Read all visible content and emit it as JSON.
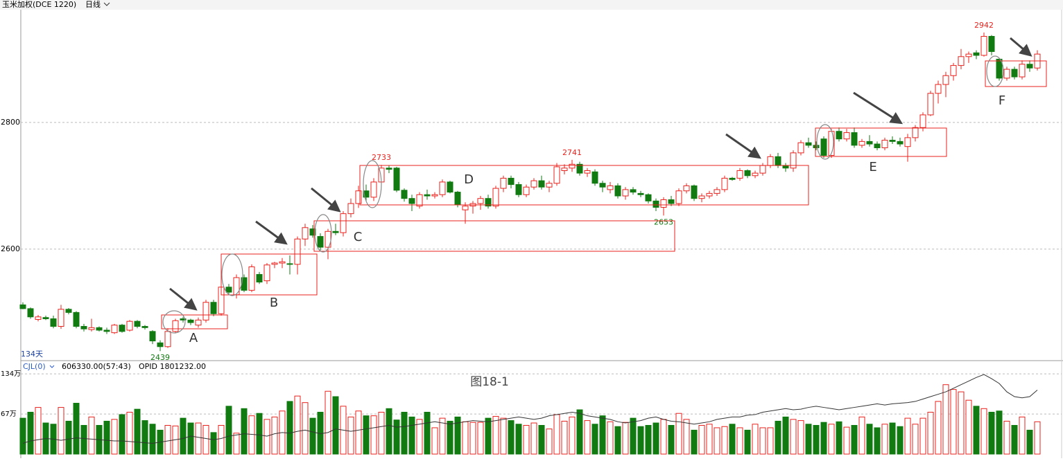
{
  "header": {
    "instrument": "玉米加权(DCE 1220)",
    "period": "日线"
  },
  "caption": "图18-1",
  "chart_data": [
    {
      "type": "candlestick",
      "ylim": [
        2425,
        2977
      ],
      "yticks": [
        2600,
        2800
      ],
      "grid": true,
      "up_color": "#e8211c",
      "down_color": "#117a11",
      "count_label": "134天",
      "extremes": [
        2439,
        2733,
        2741,
        2653,
        2942
      ],
      "zone_labels": [
        "A",
        "B",
        "C",
        "D",
        "E",
        "F"
      ],
      "ohlc": [
        [
          2512,
          2516,
          2505,
          2506
        ],
        [
          2506,
          2508,
          2490,
          2493
        ],
        [
          2489,
          2496,
          2486,
          2493
        ],
        [
          2492,
          2495,
          2488,
          2490
        ],
        [
          2490,
          2495,
          2475,
          2478
        ],
        [
          2478,
          2512,
          2474,
          2505
        ],
        [
          2505,
          2507,
          2497,
          2500
        ],
        [
          2500,
          2502,
          2475,
          2478
        ],
        [
          2478,
          2482,
          2470,
          2474
        ],
        [
          2473,
          2490,
          2470,
          2476
        ],
        [
          2476,
          2478,
          2470,
          2472
        ],
        [
          2472,
          2476,
          2466,
          2470
        ],
        [
          2468,
          2482,
          2466,
          2480
        ],
        [
          2480,
          2482,
          2468,
          2470
        ],
        [
          2472,
          2488,
          2470,
          2486
        ],
        [
          2486,
          2488,
          2475,
          2478
        ],
        [
          2478,
          2480,
          2473,
          2476
        ],
        [
          2470,
          2472,
          2450,
          2455
        ],
        [
          2452,
          2456,
          2439,
          2446
        ],
        [
          2446,
          2475,
          2444,
          2470
        ],
        [
          2470,
          2490,
          2467,
          2487
        ],
        [
          2490,
          2493,
          2484,
          2488
        ],
        [
          2488,
          2490,
          2480,
          2484
        ],
        [
          2480,
          2492,
          2476,
          2488
        ],
        [
          2488,
          2520,
          2484,
          2516
        ],
        [
          2516,
          2520,
          2494,
          2498
        ],
        [
          2498,
          2545,
          2495,
          2540
        ],
        [
          2540,
          2545,
          2528,
          2532
        ],
        [
          2528,
          2560,
          2522,
          2555
        ],
        [
          2555,
          2560,
          2532,
          2535
        ],
        [
          2535,
          2576,
          2532,
          2572
        ],
        [
          2560,
          2564,
          2545,
          2548
        ],
        [
          2550,
          2578,
          2545,
          2575
        ],
        [
          2576,
          2580,
          2570,
          2578
        ],
        [
          2578,
          2586,
          2570,
          2580
        ],
        [
          2577,
          2590,
          2560,
          2576
        ],
        [
          2576,
          2620,
          2560,
          2616
        ],
        [
          2616,
          2640,
          2605,
          2634
        ],
        [
          2632,
          2638,
          2618,
          2622
        ],
        [
          2620,
          2625,
          2598,
          2603
        ],
        [
          2603,
          2632,
          2584,
          2628
        ],
        [
          2628,
          2640,
          2622,
          2626
        ],
        [
          2626,
          2660,
          2620,
          2656
        ],
        [
          2656,
          2680,
          2650,
          2672
        ],
        [
          2672,
          2700,
          2665,
          2692
        ],
        [
          2692,
          2702,
          2676,
          2682
        ],
        [
          2682,
          2712,
          2676,
          2706
        ],
        [
          2706,
          2733,
          2700,
          2728
        ],
        [
          2728,
          2732,
          2720,
          2726
        ],
        [
          2728,
          2730,
          2690,
          2693
        ],
        [
          2693,
          2696,
          2675,
          2680
        ],
        [
          2680,
          2686,
          2660,
          2672
        ],
        [
          2668,
          2690,
          2664,
          2686
        ],
        [
          2686,
          2694,
          2678,
          2684
        ],
        [
          2684,
          2690,
          2680,
          2686
        ],
        [
          2686,
          2710,
          2682,
          2706
        ],
        [
          2706,
          2708,
          2688,
          2690
        ],
        [
          2690,
          2692,
          2666,
          2670
        ],
        [
          2662,
          2674,
          2640,
          2668
        ],
        [
          2668,
          2676,
          2656,
          2672
        ],
        [
          2672,
          2684,
          2662,
          2680
        ],
        [
          2680,
          2686,
          2664,
          2668
        ],
        [
          2668,
          2700,
          2664,
          2696
        ],
        [
          2696,
          2716,
          2690,
          2712
        ],
        [
          2712,
          2716,
          2696,
          2702
        ],
        [
          2702,
          2706,
          2682,
          2686
        ],
        [
          2686,
          2702,
          2682,
          2698
        ],
        [
          2698,
          2712,
          2694,
          2708
        ],
        [
          2708,
          2716,
          2694,
          2698
        ],
        [
          2698,
          2708,
          2690,
          2704
        ],
        [
          2704,
          2736,
          2700,
          2730
        ],
        [
          2724,
          2734,
          2718,
          2728
        ],
        [
          2728,
          2741,
          2722,
          2734
        ],
        [
          2734,
          2738,
          2716,
          2720
        ],
        [
          2720,
          2728,
          2714,
          2724
        ],
        [
          2722,
          2726,
          2700,
          2704
        ],
        [
          2704,
          2708,
          2690,
          2698
        ],
        [
          2694,
          2706,
          2688,
          2700
        ],
        [
          2700,
          2704,
          2680,
          2684
        ],
        [
          2684,
          2698,
          2678,
          2694
        ],
        [
          2694,
          2698,
          2686,
          2690
        ],
        [
          2688,
          2692,
          2682,
          2686
        ],
        [
          2686,
          2688,
          2672,
          2676
        ],
        [
          2676,
          2680,
          2660,
          2666
        ],
        [
          2666,
          2682,
          2653,
          2678
        ],
        [
          2678,
          2684,
          2668,
          2672
        ],
        [
          2672,
          2696,
          2668,
          2692
        ],
        [
          2692,
          2704,
          2688,
          2700
        ],
        [
          2700,
          2702,
          2676,
          2680
        ],
        [
          2680,
          2688,
          2674,
          2684
        ],
        [
          2684,
          2692,
          2680,
          2688
        ],
        [
          2688,
          2698,
          2684,
          2694
        ],
        [
          2694,
          2716,
          2690,
          2712
        ],
        [
          2712,
          2714,
          2708,
          2710
        ],
        [
          2712,
          2728,
          2708,
          2724
        ],
        [
          2724,
          2726,
          2712,
          2716
        ],
        [
          2716,
          2724,
          2712,
          2720
        ],
        [
          2720,
          2736,
          2716,
          2732
        ],
        [
          2732,
          2750,
          2728,
          2746
        ],
        [
          2746,
          2752,
          2728,
          2732
        ],
        [
          2732,
          2736,
          2722,
          2728
        ],
        [
          2728,
          2756,
          2722,
          2752
        ],
        [
          2752,
          2772,
          2748,
          2768
        ],
        [
          2768,
          2776,
          2760,
          2764
        ],
        [
          2764,
          2770,
          2756,
          2760
        ],
        [
          2774,
          2778,
          2744,
          2748
        ],
        [
          2748,
          2790,
          2744,
          2786
        ],
        [
          2786,
          2792,
          2770,
          2774
        ],
        [
          2774,
          2790,
          2770,
          2784
        ],
        [
          2784,
          2792,
          2760,
          2764
        ],
        [
          2764,
          2774,
          2760,
          2770
        ],
        [
          2770,
          2780,
          2762,
          2766
        ],
        [
          2766,
          2770,
          2756,
          2760
        ],
        [
          2760,
          2776,
          2756,
          2772
        ],
        [
          2772,
          2778,
          2766,
          2770
        ],
        [
          2770,
          2776,
          2762,
          2766
        ],
        [
          2762,
          2782,
          2738,
          2776
        ],
        [
          2776,
          2796,
          2770,
          2792
        ],
        [
          2792,
          2816,
          2786,
          2812
        ],
        [
          2812,
          2850,
          2810,
          2846
        ],
        [
          2846,
          2866,
          2830,
          2860
        ],
        [
          2860,
          2880,
          2840,
          2874
        ],
        [
          2874,
          2894,
          2866,
          2890
        ],
        [
          2890,
          2916,
          2884,
          2904
        ],
        [
          2904,
          2912,
          2894,
          2908
        ],
        [
          2910,
          2914,
          2900,
          2906
        ],
        [
          2906,
          2942,
          2904,
          2936
        ],
        [
          2936,
          2938,
          2906,
          2912
        ],
        [
          2900,
          2902,
          2866,
          2870
        ],
        [
          2870,
          2888,
          2866,
          2884
        ],
        [
          2884,
          2888,
          2868,
          2872
        ],
        [
          2872,
          2898,
          2868,
          2892
        ],
        [
          2892,
          2898,
          2880,
          2886
        ],
        [
          2886,
          2914,
          2882,
          2908
        ]
      ]
    },
    {
      "type": "volume",
      "indicator_label": "CJL(0)",
      "readouts": [
        "606330.00(57:43)",
        "OPID 1801232.00"
      ],
      "ylim": [
        0,
        155
      ],
      "yticks": [
        {
          "value": 67,
          "label": "67万"
        },
        {
          "value": 134,
          "label": "134万"
        }
      ],
      "grid": true,
      "line_color": "#333333",
      "volume": [
        60,
        70,
        78,
        52,
        50,
        78,
        55,
        85,
        48,
        62,
        48,
        55,
        58,
        66,
        70,
        75,
        56,
        50,
        40,
        48,
        47,
        60,
        52,
        52,
        48,
        36,
        48,
        80,
        35,
        76,
        64,
        68,
        58,
        62,
        72,
        88,
        97,
        86,
        60,
        70,
        105,
        96,
        80,
        62,
        72,
        64,
        64,
        70,
        76,
        57,
        70,
        62,
        58,
        70,
        44,
        60,
        55,
        62,
        54,
        53,
        53,
        60,
        63,
        60,
        56,
        50,
        48,
        52,
        48,
        42,
        66,
        55,
        62,
        74,
        56,
        50,
        64,
        54,
        46,
        53,
        60,
        46,
        48,
        52,
        58,
        48,
        68,
        58,
        40,
        48,
        50,
        44,
        46,
        50,
        44,
        40,
        50,
        44,
        44,
        55,
        62,
        58,
        56,
        50,
        48,
        53,
        50,
        54,
        45,
        48,
        62,
        50,
        44,
        50,
        52,
        46,
        60,
        50,
        60,
        70,
        88,
        116,
        108,
        104,
        90,
        80,
        76,
        70,
        72,
        55,
        48,
        62,
        40,
        54
      ],
      "opid": [
        18,
        22,
        24,
        26,
        25,
        23,
        25,
        27,
        26,
        25,
        24,
        23,
        22,
        22,
        21,
        20,
        19,
        18,
        20,
        22,
        24,
        26,
        30,
        28,
        26,
        24,
        26,
        30,
        32,
        34,
        33,
        32,
        30,
        34,
        36,
        35,
        38,
        40,
        37,
        34,
        36,
        42,
        40,
        38,
        40,
        42,
        44,
        46,
        48,
        45,
        46,
        48,
        50,
        52,
        54,
        52,
        50,
        52,
        54,
        56,
        55,
        54,
        56,
        58,
        60,
        62,
        60,
        58,
        60,
        64,
        66,
        68,
        70,
        68,
        64,
        62,
        60,
        58,
        54,
        52,
        54,
        56,
        60,
        62,
        58,
        55,
        54,
        52,
        50,
        52,
        54,
        58,
        60,
        62,
        62,
        65,
        66,
        70,
        72,
        74,
        76,
        74,
        75,
        78,
        80,
        78,
        76,
        74,
        76,
        78,
        80,
        82,
        84,
        82,
        84,
        85,
        86,
        88,
        92,
        96,
        100,
        104,
        110,
        116,
        122,
        128,
        133,
        126,
        118,
        104,
        96,
        94,
        96,
        107
      ]
    }
  ]
}
